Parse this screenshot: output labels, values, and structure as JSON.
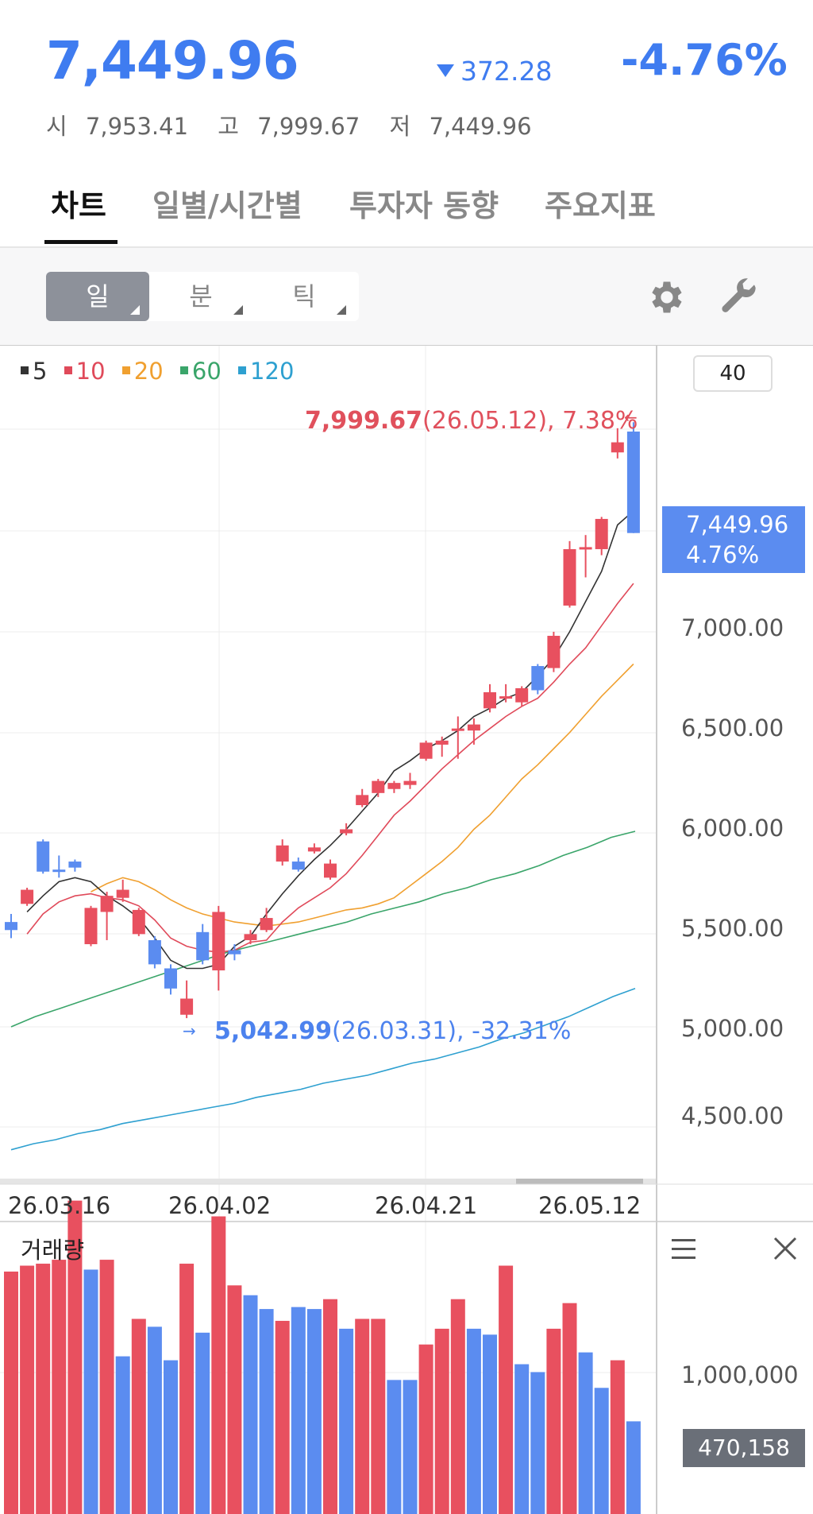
{
  "header": {
    "price": "7,449.96",
    "change": "372.28",
    "change_pct": "-4.76%",
    "open_label": "시",
    "open": "7,953.41",
    "high_label": "고",
    "high": "7,999.67",
    "low_label": "저",
    "low": "7,449.96"
  },
  "tabs": [
    "차트",
    "일별/시간별",
    "투자자 동향",
    "주요지표"
  ],
  "toolbar": {
    "periods": [
      "일",
      "분",
      "틱"
    ],
    "settings_icon": "gear-icon",
    "tools_icon": "wrench-icon"
  },
  "colors": {
    "up": "#e8505f",
    "down": "#5b8cf0",
    "ma5": "#333333",
    "ma10": "#e04a5a",
    "ma20": "#f0a030",
    "ma60": "#3aa56a",
    "ma120": "#2ea0d0"
  },
  "legend": [
    "5",
    "10",
    "20",
    "60",
    "120"
  ],
  "ma_box": "40",
  "annotations": {
    "high_value": "7,999.67",
    "high_rest": "(26.05.12), 7.38%",
    "low_value": "5,042.99",
    "low_rest": "(26.03.31), -32.31%"
  },
  "current_price": {
    "value": "7,449.96",
    "pct": "4.76%"
  },
  "y_ticks": [
    "7,000.00",
    "6,500.00",
    "6,000.00",
    "5,500.00",
    "5,000.00",
    "4,500.00"
  ],
  "x_dates": [
    "26.03.16",
    "26.04.02",
    "26.04.21",
    "26.05.12"
  ],
  "volume": {
    "title": "거래량",
    "tick": "1,000,000",
    "current": "470,158"
  },
  "chart_data": {
    "type": "candlestick",
    "ylim": [
      4250,
      8150
    ],
    "candles": [
      {
        "o": 5520,
        "c": 5480,
        "h": 5560,
        "l": 5440
      },
      {
        "o": 5610,
        "c": 5680,
        "h": 5690,
        "l": 5600
      },
      {
        "o": 5920,
        "c": 5770,
        "h": 5930,
        "l": 5760
      },
      {
        "o": 5780,
        "c": 5770,
        "h": 5850,
        "l": 5740
      },
      {
        "o": 5820,
        "c": 5790,
        "h": 5830,
        "l": 5770
      },
      {
        "o": 5410,
        "c": 5590,
        "h": 5600,
        "l": 5400
      },
      {
        "o": 5570,
        "c": 5650,
        "h": 5670,
        "l": 5430
      },
      {
        "o": 5640,
        "c": 5680,
        "h": 5730,
        "l": 5620
      },
      {
        "o": 5460,
        "c": 5580,
        "h": 5590,
        "l": 5450
      },
      {
        "o": 5430,
        "c": 5310,
        "h": 5450,
        "l": 5290
      },
      {
        "o": 5290,
        "c": 5190,
        "h": 5310,
        "l": 5160
      },
      {
        "o": 5060,
        "c": 5140,
        "h": 5230,
        "l": 5043
      },
      {
        "o": 5470,
        "c": 5330,
        "h": 5510,
        "l": 5310
      },
      {
        "o": 5280,
        "c": 5570,
        "h": 5600,
        "l": 5180
      },
      {
        "o": 5380,
        "c": 5360,
        "h": 5410,
        "l": 5330
      },
      {
        "o": 5430,
        "c": 5460,
        "h": 5480,
        "l": 5410
      },
      {
        "o": 5480,
        "c": 5540,
        "h": 5590,
        "l": 5470
      },
      {
        "o": 5820,
        "c": 5900,
        "h": 5930,
        "l": 5800
      },
      {
        "o": 5820,
        "c": 5780,
        "h": 5840,
        "l": 5770
      },
      {
        "o": 5870,
        "c": 5890,
        "h": 5910,
        "l": 5860
      },
      {
        "o": 5740,
        "c": 5810,
        "h": 5830,
        "l": 5730
      },
      {
        "o": 5960,
        "c": 5980,
        "h": 6010,
        "l": 5950
      },
      {
        "o": 6100,
        "c": 6150,
        "h": 6180,
        "l": 6090
      },
      {
        "o": 6160,
        "c": 6220,
        "h": 6230,
        "l": 6140
      },
      {
        "o": 6180,
        "c": 6210,
        "h": 6220,
        "l": 6160
      },
      {
        "o": 6200,
        "c": 6220,
        "h": 6260,
        "l": 6180
      },
      {
        "o": 6330,
        "c": 6410,
        "h": 6420,
        "l": 6320
      },
      {
        "o": 6400,
        "c": 6420,
        "h": 6440,
        "l": 6340
      },
      {
        "o": 6470,
        "c": 6480,
        "h": 6540,
        "l": 6330
      },
      {
        "o": 6470,
        "c": 6500,
        "h": 6530,
        "l": 6400
      },
      {
        "o": 6580,
        "c": 6660,
        "h": 6700,
        "l": 6560
      },
      {
        "o": 6640,
        "c": 6640,
        "h": 6700,
        "l": 6610
      },
      {
        "o": 6610,
        "c": 6680,
        "h": 6690,
        "l": 6590
      },
      {
        "o": 6790,
        "c": 6670,
        "h": 6800,
        "l": 6650
      },
      {
        "o": 6780,
        "c": 6940,
        "h": 6960,
        "l": 6760
      },
      {
        "o": 7090,
        "c": 7370,
        "h": 7410,
        "l": 7080
      },
      {
        "o": 7370,
        "c": 7380,
        "h": 7440,
        "l": 7230
      },
      {
        "o": 7370,
        "c": 7520,
        "h": 7530,
        "l": 7340
      },
      {
        "o": 7850,
        "c": 7900,
        "h": 7970,
        "l": 7820
      },
      {
        "o": 7953.41,
        "c": 7449.96,
        "h": 7999.67,
        "l": 7449.96
      }
    ],
    "ma5": [
      5570,
      5650,
      5720,
      5740,
      5720,
      5650,
      5600,
      5540,
      5440,
      5330,
      5290,
      5290,
      5310,
      5400,
      5450,
      5560,
      5660,
      5750,
      5830,
      5900,
      5980,
      6070,
      6160,
      6270,
      6320,
      6380,
      6420,
      6470,
      6540,
      6580,
      6630,
      6660,
      6740,
      6830,
      6960,
      7110,
      7260,
      7490,
      7560
    ],
    "ma10": [
      5460,
      5560,
      5620,
      5650,
      5660,
      5640,
      5630,
      5600,
      5530,
      5440,
      5400,
      5380,
      5370,
      5380,
      5420,
      5430,
      5520,
      5590,
      5640,
      5690,
      5760,
      5850,
      5950,
      6050,
      6120,
      6200,
      6280,
      6350,
      6420,
      6480,
      6540,
      6590,
      6630,
      6710,
      6800,
      6880,
      6990,
      7100,
      7200
    ],
    "ma20": [
      5670,
      5710,
      5740,
      5720,
      5680,
      5630,
      5590,
      5560,
      5540,
      5520,
      5510,
      5500,
      5510,
      5520,
      5540,
      5560,
      5580,
      5590,
      5610,
      5640,
      5700,
      5760,
      5820,
      5890,
      5980,
      6050,
      6140,
      6230,
      6300,
      6380,
      6460,
      6550,
      6640,
      6720,
      6800
    ],
    "ma60": [
      5000,
      5050,
      5090,
      5130,
      5170,
      5210,
      5250,
      5290,
      5330,
      5370,
      5400,
      5430,
      5460,
      5490,
      5520,
      5560,
      5590,
      5620,
      5660,
      5690,
      5730,
      5760,
      5800,
      5850,
      5890,
      5940,
      5970
    ],
    "ma120": [
      4390,
      4420,
      4440,
      4470,
      4490,
      4520,
      4540,
      4560,
      4580,
      4600,
      4620,
      4650,
      4670,
      4690,
      4720,
      4740,
      4760,
      4790,
      4820,
      4840,
      4870,
      4900,
      4940,
      4970,
      5010,
      5050,
      5100,
      5150,
      5190
    ],
    "volume_values": [
      1230000,
      1260000,
      1270000,
      1290000,
      1590000,
      1240000,
      1290000,
      800000,
      990000,
      950000,
      780000,
      1270000,
      920000,
      1510000,
      1160000,
      1110000,
      1040000,
      980000,
      1050000,
      1040000,
      1090000,
      940000,
      990000,
      990000,
      680000,
      680000,
      860000,
      940000,
      1090000,
      940000,
      910000,
      1260000,
      760000,
      720000,
      940000,
      1070000,
      820000,
      640000,
      780000,
      470158
    ],
    "volume_up": [
      true,
      true,
      true,
      true,
      true,
      false,
      true,
      false,
      true,
      false,
      false,
      true,
      false,
      true,
      true,
      false,
      false,
      true,
      false,
      false,
      true,
      false,
      true,
      true,
      false,
      false,
      true,
      true,
      true,
      false,
      false,
      true,
      false,
      false,
      true,
      true,
      false,
      false,
      true,
      false
    ]
  }
}
